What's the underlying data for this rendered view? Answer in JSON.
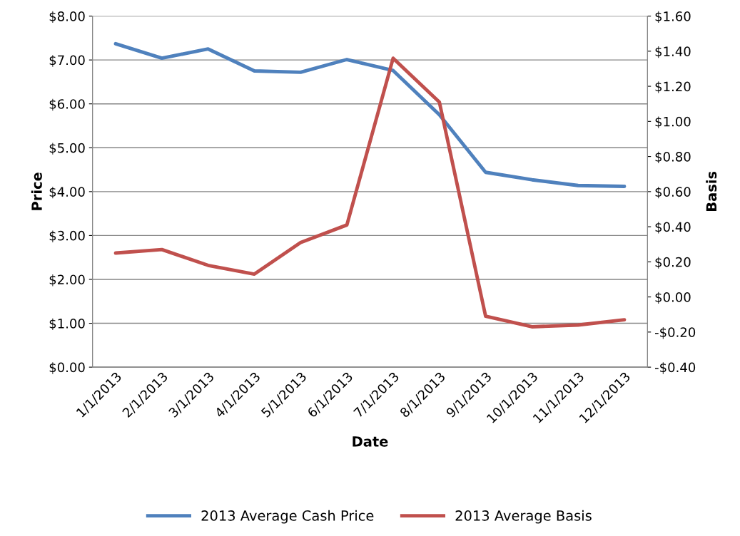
{
  "chart_data": {
    "type": "line",
    "xlabel": "Date",
    "ylabel": "Price",
    "y2label": "Basis",
    "categories": [
      "1/1/2013",
      "2/1/2013",
      "3/1/2013",
      "4/1/2013",
      "5/1/2013",
      "6/1/2013",
      "7/1/2013",
      "8/1/2013",
      "9/1/2013",
      "10/1/2013",
      "11/1/2013",
      "12/1/2013"
    ],
    "series": [
      {
        "name": "2013 Average Cash Price",
        "color": "#4f81bd",
        "values": [
          7.37,
          7.04,
          7.25,
          6.75,
          6.72,
          7.01,
          6.76,
          5.75,
          4.44,
          4.27,
          4.14,
          4.12
        ]
      },
      {
        "name": "2013 Average Basis",
        "color": "#c0504d",
        "axis": "y2",
        "values": [
          0.25,
          0.27,
          0.18,
          0.13,
          0.31,
          0.41,
          1.36,
          1.11,
          -0.11,
          -0.17,
          -0.16,
          -0.13
        ]
      }
    ],
    "ylim": [
      0,
      8
    ],
    "yticks": [
      {
        "value": 0,
        "label": "$0.00"
      },
      {
        "value": 1,
        "label": "$1.00"
      },
      {
        "value": 2,
        "label": "$2.00"
      },
      {
        "value": 3,
        "label": "$3.00"
      },
      {
        "value": 4,
        "label": "$4.00"
      },
      {
        "value": 5,
        "label": "$5.00"
      },
      {
        "value": 6,
        "label": "$6.00"
      },
      {
        "value": 7,
        "label": "$7.00"
      },
      {
        "value": 8,
        "label": "$8.00"
      }
    ],
    "y2lim": [
      -0.4,
      1.6
    ],
    "y2ticks": [
      {
        "value": -0.4,
        "label": "-$0.40"
      },
      {
        "value": -0.2,
        "label": "-$0.20"
      },
      {
        "value": 0,
        "label": "$0.00"
      },
      {
        "value": 0.2,
        "label": "$0.20"
      },
      {
        "value": 0.4,
        "label": "$0.40"
      },
      {
        "value": 0.6,
        "label": "$0.60"
      },
      {
        "value": 0.8,
        "label": "$0.80"
      },
      {
        "value": 1.0,
        "label": "$1.00"
      },
      {
        "value": 1.2,
        "label": "$1.20"
      },
      {
        "value": 1.4,
        "label": "$1.40"
      },
      {
        "value": 1.6,
        "label": "$1.60"
      }
    ],
    "grid": "y",
    "legend": "bottom",
    "marker": "none",
    "line_style": "solid"
  }
}
